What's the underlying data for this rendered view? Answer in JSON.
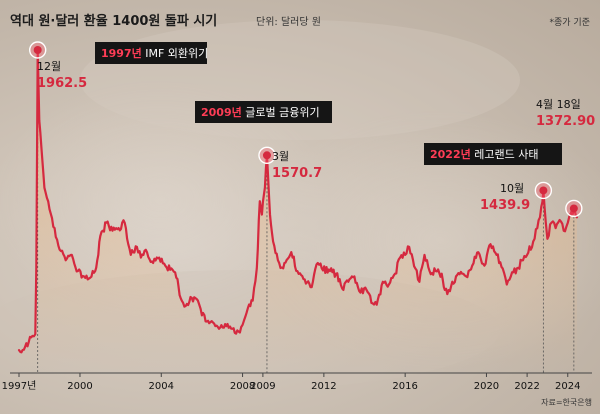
{
  "title": "역대 원·달러 환율 1400원 돌파 시기",
  "unit": "단위: 달러당 원",
  "note": "*종가 기준",
  "source": "자료=한국은행",
  "colors": {
    "line": "#d5293f",
    "area": "#e9c7a0",
    "event_box": "#151515",
    "event_year": "#ff3d56"
  },
  "chart_data": {
    "type": "line",
    "title": "역대 원·달러 환율 1400원 돌파 시기",
    "ylabel": "단위: 달러당 원",
    "xlim": [
      1997.0,
      2024.75
    ],
    "ylim": [
      700,
      2020
    ],
    "x_ticks": [
      {
        "x": 1997.0,
        "label": "1997년"
      },
      {
        "x": 2000.0,
        "label": "2000"
      },
      {
        "x": 2004.0,
        "label": "2004"
      },
      {
        "x": 2008.0,
        "label": "2008"
      },
      {
        "x": 2009.0,
        "label": "2009"
      },
      {
        "x": 2012.0,
        "label": "2012"
      },
      {
        "x": 2016.0,
        "label": "2016"
      },
      {
        "x": 2020.0,
        "label": "2020"
      },
      {
        "x": 2022.0,
        "label": "2022"
      },
      {
        "x": 2024.0,
        "label": "2024"
      }
    ],
    "series": [
      {
        "points": [
          [
            1997.0,
            846
          ],
          [
            1997.3,
            858
          ],
          [
            1997.6,
            893
          ],
          [
            1997.8,
            905
          ],
          [
            1997.85,
            1150
          ],
          [
            1997.92,
            1962.5
          ],
          [
            1998.0,
            1700
          ],
          [
            1998.1,
            1600
          ],
          [
            1998.25,
            1450
          ],
          [
            1998.5,
            1370
          ],
          [
            1998.75,
            1300
          ],
          [
            1999.0,
            1220
          ],
          [
            1999.3,
            1180
          ],
          [
            1999.6,
            1200
          ],
          [
            1999.9,
            1140
          ],
          [
            2000.2,
            1120
          ],
          [
            2000.5,
            1115
          ],
          [
            2000.75,
            1140
          ],
          [
            2000.9,
            1200
          ],
          [
            2001.0,
            1270
          ],
          [
            2001.3,
            1320
          ],
          [
            2001.6,
            1290
          ],
          [
            2001.9,
            1300
          ],
          [
            2002.2,
            1320
          ],
          [
            2002.5,
            1200
          ],
          [
            2002.8,
            1230
          ],
          [
            2003.0,
            1190
          ],
          [
            2003.3,
            1210
          ],
          [
            2003.6,
            1170
          ],
          [
            2003.9,
            1190
          ],
          [
            2004.2,
            1160
          ],
          [
            2004.5,
            1150
          ],
          [
            2004.8,
            1110
          ],
          [
            2004.95,
            1040
          ],
          [
            2005.2,
            1010
          ],
          [
            2005.5,
            1040
          ],
          [
            2005.8,
            1030
          ],
          [
            2006.0,
            975
          ],
          [
            2006.3,
            955
          ],
          [
            2006.6,
            945
          ],
          [
            2006.9,
            930
          ],
          [
            2007.2,
            935
          ],
          [
            2007.5,
            925
          ],
          [
            2007.8,
            915
          ],
          [
            2008.0,
            940
          ],
          [
            2008.2,
            985
          ],
          [
            2008.5,
            1030
          ],
          [
            2008.7,
            1150
          ],
          [
            2008.85,
            1400
          ],
          [
            2008.95,
            1350
          ],
          [
            2009.1,
            1450
          ],
          [
            2009.2,
            1570.7
          ],
          [
            2009.35,
            1350
          ],
          [
            2009.5,
            1250
          ],
          [
            2009.8,
            1170
          ],
          [
            2010.0,
            1150
          ],
          [
            2010.4,
            1210
          ],
          [
            2010.7,
            1140
          ],
          [
            2011.0,
            1110
          ],
          [
            2011.4,
            1080
          ],
          [
            2011.7,
            1170
          ],
          [
            2011.9,
            1150
          ],
          [
            2012.3,
            1140
          ],
          [
            2012.6,
            1130
          ],
          [
            2012.9,
            1075
          ],
          [
            2013.2,
            1100
          ],
          [
            2013.5,
            1120
          ],
          [
            2013.8,
            1060
          ],
          [
            2014.1,
            1070
          ],
          [
            2014.4,
            1020
          ],
          [
            2014.6,
            1015
          ],
          [
            2014.9,
            1100
          ],
          [
            2015.2,
            1090
          ],
          [
            2015.5,
            1130
          ],
          [
            2015.75,
            1190
          ],
          [
            2016.0,
            1200
          ],
          [
            2016.2,
            1230
          ],
          [
            2016.5,
            1150
          ],
          [
            2016.7,
            1100
          ],
          [
            2016.95,
            1200
          ],
          [
            2017.2,
            1140
          ],
          [
            2017.5,
            1140
          ],
          [
            2017.8,
            1130
          ],
          [
            2017.95,
            1070
          ],
          [
            2018.2,
            1065
          ],
          [
            2018.5,
            1120
          ],
          [
            2018.8,
            1130
          ],
          [
            2019.0,
            1120
          ],
          [
            2019.3,
            1160
          ],
          [
            2019.6,
            1210
          ],
          [
            2019.9,
            1160
          ],
          [
            2020.2,
            1240
          ],
          [
            2020.5,
            1200
          ],
          [
            2020.8,
            1150
          ],
          [
            2021.0,
            1090
          ],
          [
            2021.2,
            1120
          ],
          [
            2021.5,
            1150
          ],
          [
            2021.8,
            1180
          ],
          [
            2022.0,
            1200
          ],
          [
            2022.3,
            1250
          ],
          [
            2022.5,
            1300
          ],
          [
            2022.7,
            1380
          ],
          [
            2022.8,
            1439.9
          ],
          [
            2022.92,
            1320
          ],
          [
            2023.0,
            1260
          ],
          [
            2023.2,
            1320
          ],
          [
            2023.4,
            1300
          ],
          [
            2023.6,
            1330
          ],
          [
            2023.8,
            1290
          ],
          [
            2024.0,
            1320
          ],
          [
            2024.15,
            1350
          ],
          [
            2024.3,
            1372.9
          ],
          [
            2024.45,
            1340
          ]
        ]
      }
    ],
    "peaks": [
      {
        "x": 1997.92,
        "y": 1962.5,
        "label": "12월",
        "value_label": "1962.5"
      },
      {
        "x": 2009.2,
        "y": 1570.7,
        "label": "3월",
        "value_label": "1570.7"
      },
      {
        "x": 2022.8,
        "y": 1439.9,
        "label": "10월",
        "value_label": "1439.9"
      },
      {
        "x": 2024.3,
        "y": 1372.9,
        "label": "4월 18일",
        "value_label": "1372.90"
      }
    ],
    "events": [
      {
        "year": "1997년",
        "text": " IMF 외환위기"
      },
      {
        "year": "2009년",
        "text": " 글로벌 금융위기"
      },
      {
        "year": "2022년",
        "text": " 레고랜드 사태"
      }
    ]
  }
}
